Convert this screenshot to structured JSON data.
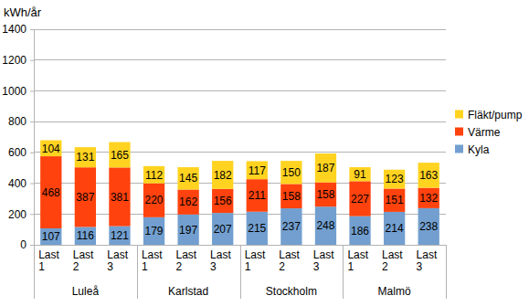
{
  "chart_data": {
    "type": "bar",
    "stacked": true,
    "data_labels": true,
    "grid": true,
    "legend": "right",
    "y_label": "kWh/år",
    "categories": [
      "Last 1",
      "Last 2",
      "Last 3",
      "Last 1",
      "Last 2",
      "Last 3",
      "Last 1",
      "Last 2",
      "Last 3",
      "Last 1",
      "Last 2",
      "Last 3"
    ],
    "groups": [
      "Luleå",
      "Karlstad",
      "Stockholm",
      "Malmö"
    ],
    "series": [
      {
        "name": "Kyla",
        "color": "#729fcf",
        "values": [
          107,
          116,
          121,
          179,
          197,
          207,
          215,
          237,
          248,
          186,
          214,
          238
        ]
      },
      {
        "name": "Värme",
        "color": "#ff420e",
        "values": [
          468,
          387,
          381,
          220,
          162,
          156,
          211,
          158,
          158,
          227,
          151,
          132
        ]
      },
      {
        "name": "Fläkt/pump",
        "color": "#ffd320",
        "values": [
          104,
          131,
          165,
          112,
          145,
          182,
          117,
          150,
          187,
          91,
          123,
          163
        ]
      }
    ],
    "ylim": [
      0,
      1400
    ],
    "yticks": [
      0,
      200,
      400,
      600,
      800,
      1000,
      1200,
      1400
    ]
  }
}
